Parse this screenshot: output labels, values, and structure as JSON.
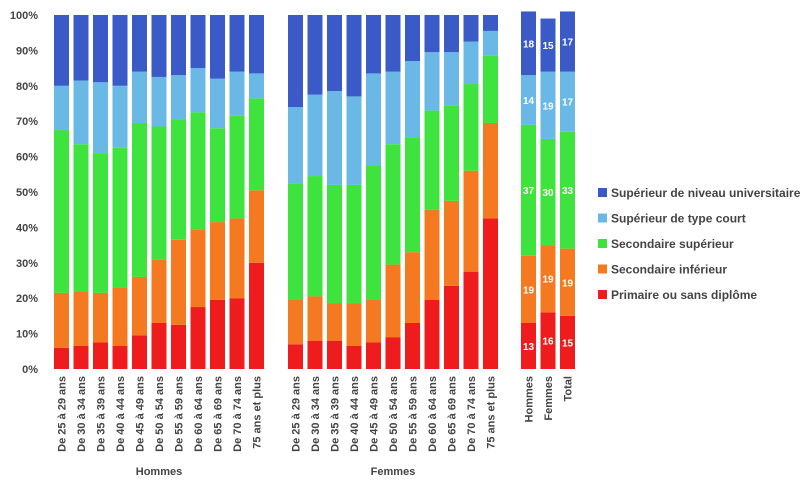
{
  "chart_data": {
    "type": "bar",
    "stacked": true,
    "ylim": [
      0,
      100
    ],
    "yticks": [
      "0%",
      "10%",
      "20%",
      "30%",
      "40%",
      "50%",
      "60%",
      "70%",
      "80%",
      "90%",
      "100%"
    ],
    "grid": false,
    "legend_position": "right",
    "series": [
      {
        "name": "Primaire ou sans diplôme",
        "color": "#ee1c1c"
      },
      {
        "name": "Secondaire inférieur",
        "color": "#f47920"
      },
      {
        "name": "Secondaire supérieur",
        "color": "#3ee33e"
      },
      {
        "name": "Supérieur de type court",
        "color": "#6ab8e6"
      },
      {
        "name": "Supérieur de niveau universitaire",
        "color": "#3a5bc7"
      }
    ],
    "groups": [
      {
        "label": "Hommes",
        "categories": [
          "De 25 à 29 ans",
          "De 30 à 34 ans",
          "De 35 à 39 ans",
          "De 40 à 44 ans",
          "De 45 à 49 ans",
          "De 50 à 54 ans",
          "De 55 à 59 ans",
          "De 60 à 64 ans",
          "De 65 à 69 ans",
          "De 70 à 74 ans",
          "75 ans et plus"
        ],
        "values": [
          [
            6,
            15.5,
            46,
            12.5,
            20
          ],
          [
            6.5,
            15.5,
            41.5,
            18,
            18.5
          ],
          [
            7.5,
            14,
            39.5,
            20,
            19
          ],
          [
            6.5,
            16.5,
            39.5,
            17.5,
            20
          ],
          [
            9.5,
            16.5,
            43.5,
            14.5,
            16
          ],
          [
            13,
            18,
            37.5,
            14,
            17.5
          ],
          [
            12.5,
            24,
            34,
            12.5,
            17
          ],
          [
            17.5,
            22,
            33,
            12.5,
            15
          ],
          [
            19.5,
            22,
            26.5,
            14,
            18
          ],
          [
            20,
            22.5,
            29,
            12.5,
            16
          ],
          [
            30,
            20.5,
            26,
            7,
            16.5
          ]
        ]
      },
      {
        "label": "Femmes",
        "categories": [
          "De 25 à 29 ans",
          "De 30 à 34 ans",
          "De 35 à 39 ans",
          "De 40 à 44 ans",
          "De 45 à 49 ans",
          "De 50 à 54 ans",
          "De 55 à 59 ans",
          "De 60 à 64 ans",
          "De 65 à 69 ans",
          "De 70 à 74 ans",
          "75 ans et plus"
        ],
        "values": [
          [
            7,
            12.5,
            33,
            21.5,
            26
          ],
          [
            8,
            12.5,
            34,
            23,
            22.5
          ],
          [
            8,
            10.5,
            33.5,
            26.5,
            21.5
          ],
          [
            6.5,
            12,
            33.5,
            25,
            23
          ],
          [
            7.5,
            12,
            38,
            26,
            16.5
          ],
          [
            9,
            20.5,
            34,
            20.5,
            16
          ],
          [
            13,
            20,
            32.5,
            21.5,
            13
          ],
          [
            19.5,
            25.5,
            28,
            16.5,
            10.5
          ],
          [
            23.5,
            24,
            27,
            15,
            10.5
          ],
          [
            27.5,
            28.5,
            24.5,
            12,
            7.5
          ],
          [
            42.5,
            27,
            19,
            7,
            4.5
          ]
        ]
      },
      {
        "label": "",
        "categories": [
          "Hommes",
          "Femmes",
          "Total"
        ],
        "values": [
          [
            13,
            19,
            37,
            14,
            18
          ],
          [
            16,
            19,
            30,
            19,
            15
          ],
          [
            15,
            19,
            33,
            17,
            17
          ]
        ],
        "labeled": true
      }
    ]
  }
}
